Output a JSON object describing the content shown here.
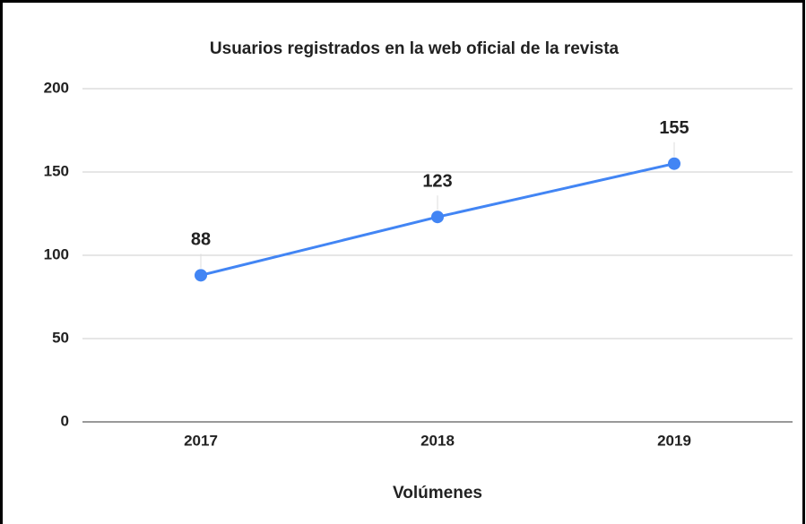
{
  "chart_data": {
    "type": "line",
    "title": "Usuarios registrados en la web oficial de la revista",
    "x_label": "Volúmenes",
    "categories": [
      "2017",
      "2018",
      "2019"
    ],
    "series": [
      {
        "name": "Usuarios registrados",
        "color": "#4285f4",
        "values": [
          88,
          123,
          155
        ]
      }
    ],
    "ylim": [
      0,
      200
    ],
    "yticks": [
      0,
      50,
      100,
      150,
      200
    ],
    "grid": true
  }
}
